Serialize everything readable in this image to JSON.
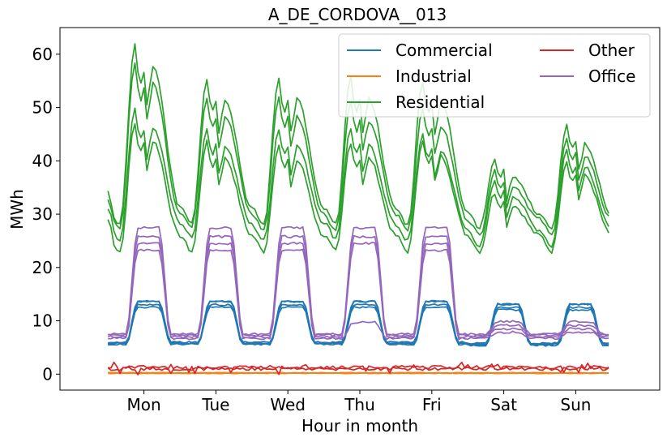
{
  "chart_data": {
    "type": "line",
    "title": "A_DE_CORDOVA__013",
    "xlabel": "Hour in month",
    "ylabel": "MWh",
    "ylim": [
      -3,
      65
    ],
    "yticks": [
      0,
      10,
      20,
      30,
      40,
      50,
      60
    ],
    "xlim": [
      -16,
      184
    ],
    "xticks": [
      12,
      36,
      60,
      84,
      108,
      132,
      156
    ],
    "xtick_labels": [
      "Mon",
      "Tue",
      "Wed",
      "Thu",
      "Fri",
      "Sat",
      "Sun"
    ],
    "legend": {
      "placement": "top-right",
      "columns": 2,
      "entries": [
        "Commercial",
        "Industrial",
        "Residential",
        "Other",
        "Office"
      ]
    },
    "grid": false,
    "colors": {
      "Commercial": "#1f77b4",
      "Industrial": "#ff7f0e",
      "Residential": "#2ca02c",
      "Other": "#d62728",
      "Office": "#9467bd"
    },
    "series": [
      {
        "name": "Commercial",
        "weekday": {
          "night": 5.8,
          "day": 13.0
        },
        "weekend": {
          "night": 5.6,
          "day": 12.5
        },
        "traces": [
          {
            "scale": 1.0,
            "offset": 0.0
          },
          {
            "scale": 1.03,
            "offset": 0.2
          },
          {
            "scale": 0.98,
            "offset": -0.2
          },
          {
            "scale": 1.05,
            "offset": 0.0
          }
        ]
      },
      {
        "name": "Industrial",
        "flat": 0.15,
        "traces": [
          {
            "scale": 1.0,
            "offset": 0.0
          },
          {
            "scale": 1.0,
            "offset": 0.1
          }
        ]
      },
      {
        "name": "Residential",
        "daily_peaks": [
          [
            47.0,
            49.5,
            58.5,
            61.8
          ],
          [
            43.5,
            46.0,
            52.0,
            55.5
          ],
          [
            43.0,
            46.0,
            52.0,
            55.5
          ],
          [
            43.5,
            46.0,
            51.0,
            55.5
          ],
          [
            44.0,
            45.0,
            50.0,
            55.0
          ],
          [
            34.0,
            36.0,
            38.0,
            40.0
          ],
          [
            40.0,
            42.0,
            44.0,
            46.5
          ]
        ],
        "daily_troughs": [
          [
            23.0,
            25.0,
            27.0,
            28.0
          ],
          [
            23.0,
            25.5,
            27.5,
            28.5
          ],
          [
            23.0,
            25.0,
            27.0,
            28.0
          ],
          [
            23.0,
            25.5,
            27.0,
            28.0
          ],
          [
            23.0,
            25.0,
            27.0,
            28.0
          ],
          [
            23.0,
            24.0,
            26.0,
            27.5
          ],
          [
            23.0,
            24.0,
            26.0,
            27.0
          ]
        ]
      },
      {
        "name": "Other",
        "level": 1.0,
        "traces": [
          {
            "offset": 0.0
          },
          {
            "offset": 0.3
          }
        ]
      },
      {
        "name": "Office",
        "weekday": {
          "night": 7.0,
          "day": 24.5
        },
        "weekend": {
          "night": 7.0,
          "day": 8.5
        },
        "traces": [
          {
            "scale": 1.0,
            "offset": 0.0
          },
          {
            "scale": 1.04,
            "offset": 0.3
          },
          {
            "scale": 0.96,
            "offset": -0.3
          },
          {
            "scale": 1.1,
            "offset": 0.5
          }
        ]
      }
    ]
  }
}
